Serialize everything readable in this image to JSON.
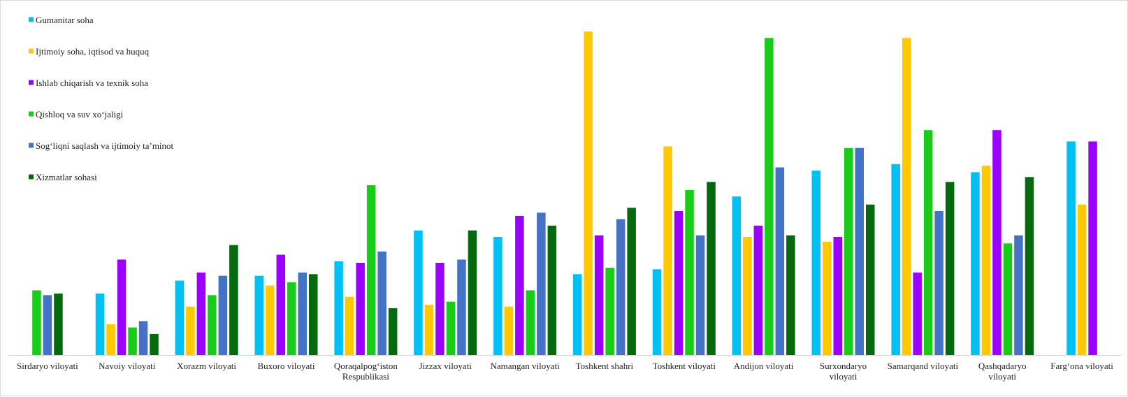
{
  "chart_data": {
    "type": "bar",
    "title": "",
    "xlabel": "",
    "ylabel": "",
    "ylim": [
      0,
      100
    ],
    "grid": false,
    "legend_position": "top-left",
    "categories": [
      [
        "Sirdaryo viloyati"
      ],
      [
        "Navoiy viloyati"
      ],
      [
        "Xorazm viloyati"
      ],
      [
        "Buxoro viloyati"
      ],
      [
        "Qoraqalpog‘iston",
        "Respublikasi"
      ],
      [
        "Jizzax viloyati"
      ],
      [
        "Namangan viloyati"
      ],
      [
        "Toshkent shahri"
      ],
      [
        "Toshkent viloyati"
      ],
      [
        "Andijon viloyati"
      ],
      [
        "Surxondaryo",
        "viloyati"
      ],
      [
        "Samarqand viloyati"
      ],
      [
        "Qashqadaryo",
        "viloyati"
      ],
      [
        "Farg‘ona viloyati"
      ]
    ],
    "series": [
      {
        "name": "Gumanitar soha",
        "color": "#00c0f4",
        "values": [
          null,
          19,
          23,
          24.5,
          29,
          38.5,
          36.5,
          25,
          26.5,
          49,
          57,
          59,
          56.5,
          66
        ]
      },
      {
        "name": "Ijtimoiy soha, iqtisod va huquq",
        "color": "#ffc800",
        "values": [
          null,
          9.5,
          15,
          21.5,
          18,
          15.5,
          15,
          100,
          64.5,
          36.5,
          35,
          98,
          58.5,
          46.5
        ]
      },
      {
        "name": "Ishlab chiqarish va texnik soha",
        "color": "#9b00ff",
        "values": [
          null,
          29.5,
          25.5,
          31,
          28.5,
          28.5,
          43,
          37,
          44.5,
          40,
          36.5,
          25.5,
          69.5,
          66
        ]
      },
      {
        "name": "Qishloq  va suv xo‘jaligi",
        "color": "#19cc19",
        "values": [
          20,
          8.5,
          18.5,
          22.5,
          52.5,
          16.5,
          20,
          27,
          51,
          98,
          64,
          69.5,
          34.5,
          null
        ]
      },
      {
        "name": "Sog‘liqni  saqlash va ijtimoiy  ta’minot",
        "color": "#4472c4",
        "values": [
          18.5,
          10.5,
          24.5,
          25.5,
          32,
          29.5,
          44,
          42,
          37,
          58,
          64,
          44.5,
          37,
          null
        ]
      },
      {
        "name": "Xizmatlar sohasi",
        "color": "#046a0d",
        "values": [
          19,
          6.5,
          34,
          25,
          14.5,
          38.5,
          40,
          45.5,
          53.5,
          37,
          46.5,
          53.5,
          55,
          null
        ]
      }
    ]
  }
}
